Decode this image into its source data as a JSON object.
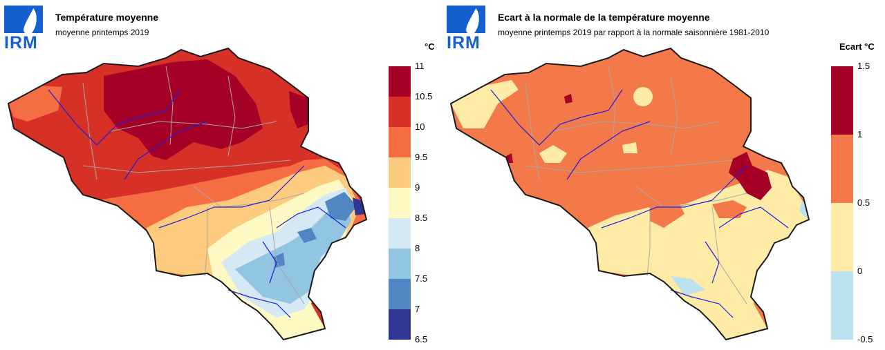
{
  "logo_text": "IRM",
  "panels": [
    {
      "title": "Température moyenne",
      "subtitle": "moyenne printemps 2019",
      "unit": "°C",
      "legend": {
        "ticks": [
          "11",
          "10.5",
          "10",
          "9.5",
          "9",
          "8.5",
          "8",
          "7.5",
          "7",
          "6.5"
        ],
        "bins": [
          {
            "from": 10.5,
            "to": 11,
            "color": "#a50026"
          },
          {
            "from": 10,
            "to": 10.5,
            "color": "#d73027"
          },
          {
            "from": 9.5,
            "to": 10,
            "color": "#f46d43"
          },
          {
            "from": 9,
            "to": 9.5,
            "color": "#fdcb7e"
          },
          {
            "from": 8.5,
            "to": 9,
            "color": "#fff9c4"
          },
          {
            "from": 8,
            "to": 8.5,
            "color": "#d4e9f4"
          },
          {
            "from": 7.5,
            "to": 8,
            "color": "#92c5e2"
          },
          {
            "from": 7,
            "to": 7.5,
            "color": "#4f86c3"
          },
          {
            "from": 6.5,
            "to": 7,
            "color": "#313695"
          }
        ]
      }
    },
    {
      "title": "Ecart à la normale de la température moyenne",
      "subtitle": "moyenne printemps 2019 par rapport à la normale saisonnière 1981-2010",
      "unit": "Ecart  °C",
      "legend": {
        "ticks": [
          "1.5",
          "1",
          "0.5",
          "0",
          "-0.5"
        ],
        "bins": [
          {
            "from": 1,
            "to": 1.5,
            "color": "#a50026"
          },
          {
            "from": 0.5,
            "to": 1,
            "color": "#f4794a"
          },
          {
            "from": 0,
            "to": 0.5,
            "color": "#fdeba6"
          },
          {
            "from": -0.5,
            "to": 0,
            "color": "#bde2ef"
          }
        ]
      }
    }
  ],
  "colors": {
    "logo": "#1560d0",
    "border": "#1a1a1a",
    "admin_lines": "#a8a8a8",
    "rivers": "#1d1ddc"
  }
}
